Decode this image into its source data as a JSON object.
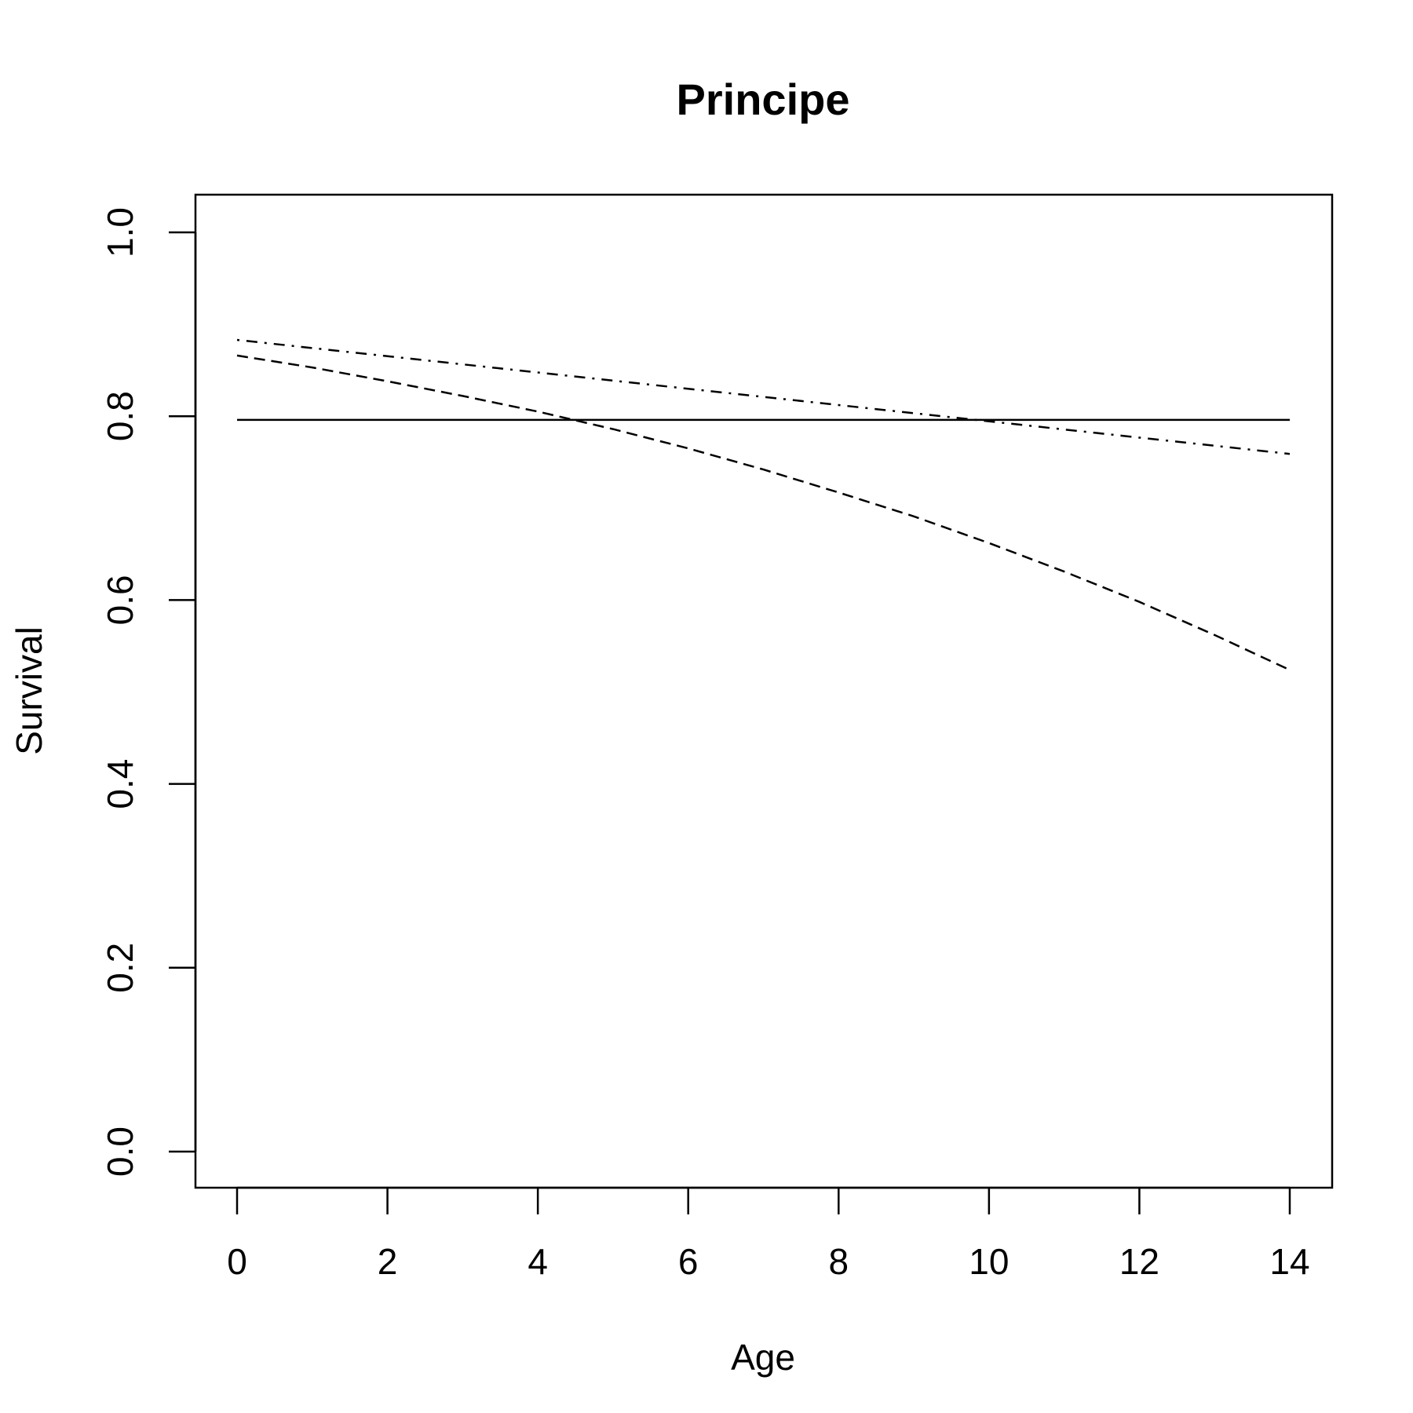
{
  "chart_data": {
    "type": "line",
    "title": "Principe",
    "xlabel": "Age",
    "ylabel": "Survival",
    "xlim": [
      0,
      14
    ],
    "ylim": [
      0,
      1
    ],
    "x_ticks": [
      0,
      2,
      4,
      6,
      8,
      10,
      12,
      14
    ],
    "x_tick_labels": [
      "0",
      "2",
      "4",
      "6",
      "8",
      "10",
      "12",
      "14"
    ],
    "y_ticks": [
      0,
      0.2,
      0.4,
      0.6,
      0.8,
      1.0
    ],
    "y_tick_labels": [
      "0.0",
      "0.2",
      "0.4",
      "0.6",
      "0.8",
      "1.0"
    ],
    "grid": false,
    "legend": "none",
    "series": [
      {
        "line_style": "solid",
        "color": "#000000",
        "x": [
          0,
          14
        ],
        "y": [
          0.796,
          0.796
        ]
      },
      {
        "line_style": "dashed",
        "color": "#000000",
        "x": [
          0,
          1,
          2,
          3,
          4,
          5,
          6,
          7,
          8,
          9,
          10,
          11,
          12,
          13,
          14
        ],
        "y": [
          0.866,
          0.853,
          0.838,
          0.822,
          0.805,
          0.786,
          0.765,
          0.742,
          0.717,
          0.691,
          0.662,
          0.631,
          0.598,
          0.562,
          0.524
        ]
      },
      {
        "line_style": "dotdash",
        "color": "#000000",
        "x": [
          0,
          14
        ],
        "y": [
          0.883,
          0.759
        ]
      }
    ]
  }
}
